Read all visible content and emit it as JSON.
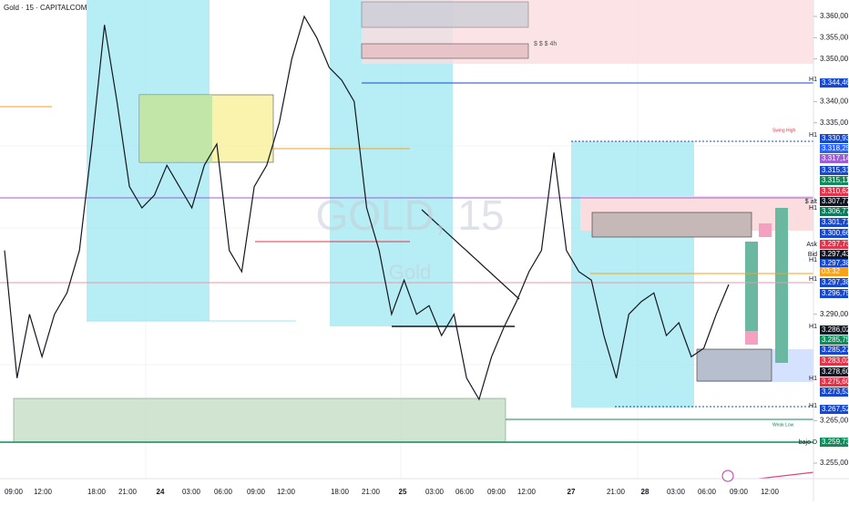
{
  "header": {
    "title": "Gold · 15 · CAPITALCOM"
  },
  "watermark": {
    "symbol": "GOLD, 15",
    "name": "Gold"
  },
  "chart_data": {
    "type": "line",
    "ylim": [
      3255,
      3360
    ],
    "yticks": [
      {
        "value": 3360,
        "label": "3.360,00"
      },
      {
        "value": 3355,
        "label": "3.355,00"
      },
      {
        "value": 3350,
        "label": "3.350,00"
      },
      {
        "value": 3340,
        "label": "3.340,00"
      },
      {
        "value": 3335,
        "label": "3.335,00"
      },
      {
        "value": 3290,
        "label": "3.290,00"
      },
      {
        "value": 3265,
        "label": "3.265,00"
      },
      {
        "value": 3255,
        "label": "3.255,00"
      }
    ],
    "series": [
      {
        "color": "#131722",
        "values": [
          3305,
          3275,
          3290,
          3280,
          3290,
          3295,
          3305,
          3330,
          3358,
          3340,
          3320,
          3315,
          3318,
          3325,
          3320,
          3315,
          3325,
          3330,
          3305,
          3300,
          3320,
          3325,
          3335,
          3350,
          3360,
          3355,
          3348,
          3345,
          3340,
          3315,
          3305,
          3290,
          3298,
          3290,
          3292,
          3285,
          3290,
          3275,
          3270,
          3280,
          3287,
          3293,
          3300,
          3305,
          3328,
          3305,
          3300,
          3298,
          3285,
          3275,
          3290,
          3293,
          3295,
          3285,
          3288,
          3280,
          3282,
          3290,
          3297
        ]
      }
    ],
    "time_labels": [
      "09:00",
      "12:00",
      "18:00",
      "21:00",
      "24",
      "03:00",
      "06:00",
      "09:00",
      "12:00",
      "18:00",
      "21:00",
      "25",
      "03:00",
      "06:00",
      "09:00",
      "12:00",
      "27",
      "21:00",
      "28",
      "03:00",
      "06:00",
      "09:00",
      "12:00"
    ],
    "price_tags": [
      {
        "label": "3.344,46",
        "color": "#1848cc",
        "side": "H1"
      },
      {
        "label": "3.330,93",
        "color": "#1848cc",
        "side": "H1"
      },
      {
        "label": "3.318,25",
        "color": "#2962ff"
      },
      {
        "label": "3.317,14",
        "color": "#9c5fd8"
      },
      {
        "label": "3.315,31",
        "color": "#1848cc"
      },
      {
        "label": "3.315,11",
        "color": "#138a5c"
      },
      {
        "label": "3.310,62",
        "color": "#e0344a"
      },
      {
        "label": "3.307,77",
        "color": "#131722",
        "side": "$ alt"
      },
      {
        "label": "3.306,77",
        "color": "#0f7a5c",
        "side": "H1"
      },
      {
        "label": "3.301,71",
        "color": "#1848cc"
      },
      {
        "label": "3.300,66",
        "color": "#1848cc"
      },
      {
        "label": "3.297,73",
        "color": "#e0344a",
        "side": "Ask"
      },
      {
        "label": "3.297,43",
        "color": "#131722",
        "side": "Bid"
      },
      {
        "label": "3.297,38",
        "color": "#1848cc",
        "side": "H1"
      },
      {
        "label": "03:32",
        "color": "#f7a21b"
      },
      {
        "label": "3.297,38",
        "color": "#1848cc",
        "side": "H1"
      },
      {
        "label": "3.296,75",
        "color": "#1848cc"
      },
      {
        "label": "3.286,02",
        "color": "#131722",
        "side": "H1"
      },
      {
        "label": "3.285,75",
        "color": "#138a5c"
      },
      {
        "label": "3.285,27",
        "color": "#1848cc"
      },
      {
        "label": "3.283,02",
        "color": "#e0344a"
      },
      {
        "label": "3.278,60",
        "color": "#131722"
      },
      {
        "label": "3.275,60",
        "color": "#e0344a",
        "side": "H1"
      },
      {
        "label": "3.273,53",
        "color": "#1848cc"
      },
      {
        "label": "3.267,52",
        "color": "#1848cc",
        "side": "H1"
      },
      {
        "label": "3.259,73",
        "color": "#138a5c",
        "side": "bajo D"
      }
    ],
    "annotations": [
      "$ $ $ 4h",
      "Swing High",
      "Weak Low"
    ]
  }
}
